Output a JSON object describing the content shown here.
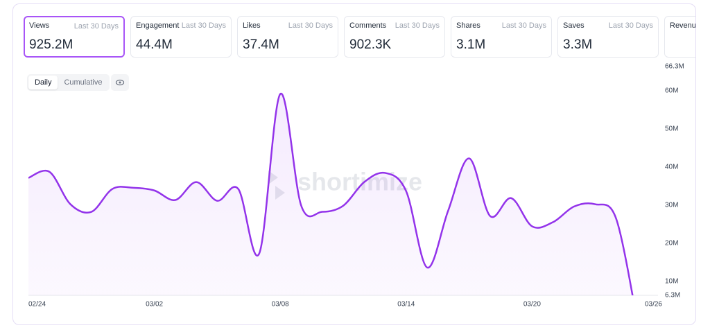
{
  "cards": [
    {
      "label": "Views",
      "period": "Last 30 Days",
      "value": "925.2M"
    },
    {
      "label": "Engagement",
      "period": "Last 30 Days",
      "value": "44.4M"
    },
    {
      "label": "Likes",
      "period": "Last 30 Days",
      "value": "37.4M"
    },
    {
      "label": "Comments",
      "period": "Last 30 Days",
      "value": "902.3K"
    },
    {
      "label": "Shares",
      "period": "Last 30 Days",
      "value": "3.1M"
    },
    {
      "label": "Saves",
      "period": "Last 30 Days",
      "value": "3.3M"
    },
    {
      "label": "Revenue"
    }
  ],
  "controls": {
    "daily": "Daily",
    "cumulative": "Cumulative"
  },
  "watermark": "shortimize",
  "chart_data": {
    "type": "line",
    "categories": [
      "02/24",
      null,
      null,
      null,
      null,
      null,
      "03/02",
      null,
      null,
      null,
      null,
      null,
      "03/08",
      null,
      null,
      null,
      null,
      null,
      "03/14",
      null,
      null,
      null,
      null,
      null,
      "03/20",
      null,
      null,
      null,
      null,
      null,
      "03/26"
    ],
    "series": [
      {
        "name": "Views",
        "color": "#9333ea",
        "values": [
          37100000,
          38700000,
          30200000,
          28200000,
          34200000,
          34500000,
          33800000,
          31300000,
          36000000,
          31100000,
          34200000,
          17300000,
          59100000,
          29800000,
          28200000,
          29800000,
          36000000,
          38400000,
          33600000,
          13600000,
          28500000,
          42200000,
          27100000,
          31800000,
          24400000,
          25500000,
          29600000,
          30200000,
          26500000,
          0,
          null
        ]
      }
    ],
    "ylim": [
      6300000,
      66300000
    ],
    "yticks": [
      {
        "value": 6300000,
        "label": "6.3M"
      },
      {
        "value": 10000000,
        "label": "10M"
      },
      {
        "value": 20000000,
        "label": "20M"
      },
      {
        "value": 30000000,
        "label": "30M"
      },
      {
        "value": 40000000,
        "label": "40M"
      },
      {
        "value": 50000000,
        "label": "50M"
      },
      {
        "value": 60000000,
        "label": "60M"
      },
      {
        "value": 66300000,
        "label": "66.3M"
      }
    ],
    "grid": false
  }
}
